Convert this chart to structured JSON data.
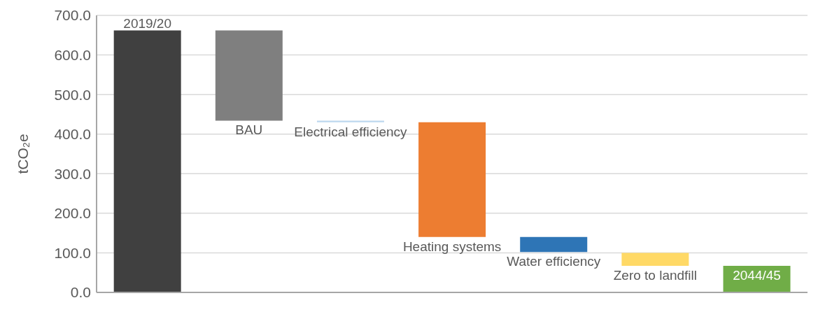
{
  "chart_data": {
    "type": "bar",
    "ylabel": "tCO₂e",
    "categories": [
      "2019/20",
      "BAU",
      "Electrical efficiency",
      "Heating systems",
      "Water efficiency",
      "Zero to landfill",
      "2044/45"
    ],
    "values": [
      662,
      -228,
      -4,
      -290,
      -38,
      -33,
      67
    ],
    "base": [
      0,
      662,
      434,
      430,
      140,
      100,
      0
    ],
    "colors": [
      "#404040",
      "#7f7f7f",
      "#bdd7ee",
      "#ed7d31",
      "#2e75b6",
      "#ffd966",
      "#70ad47"
    ],
    "ylim": [
      0,
      700
    ],
    "yticks": [
      {
        "value": 0,
        "label": "0.0"
      },
      {
        "value": 100,
        "label": "100.0"
      },
      {
        "value": 200,
        "label": "200.0"
      },
      {
        "value": 300,
        "label": "300.0"
      },
      {
        "value": 400,
        "label": "400.0"
      },
      {
        "value": 500,
        "label": "500.0"
      },
      {
        "value": 600,
        "label": "600.0"
      },
      {
        "value": 700,
        "label": "700.0"
      }
    ],
    "grid": "y",
    "tick_labels": "y"
  }
}
